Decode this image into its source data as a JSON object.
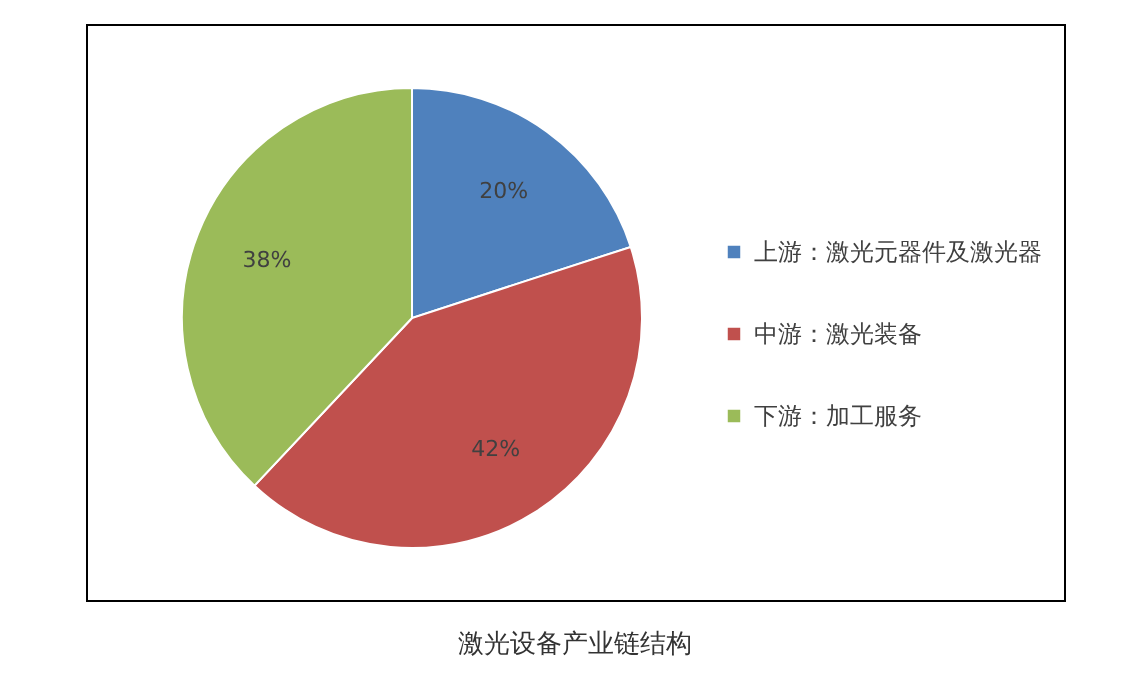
{
  "chart_data": {
    "type": "pie",
    "title": "激光设备产业链结构",
    "categories": [
      "上游：激光元器件及激光器",
      "中游：激光装备",
      "下游：加工服务"
    ],
    "values": [
      20,
      42,
      38
    ],
    "colors": [
      "#4f81bd",
      "#c0504d",
      "#9bbb59"
    ],
    "value_labels": [
      "20%",
      "42%",
      "38%"
    ],
    "legend": "right"
  }
}
